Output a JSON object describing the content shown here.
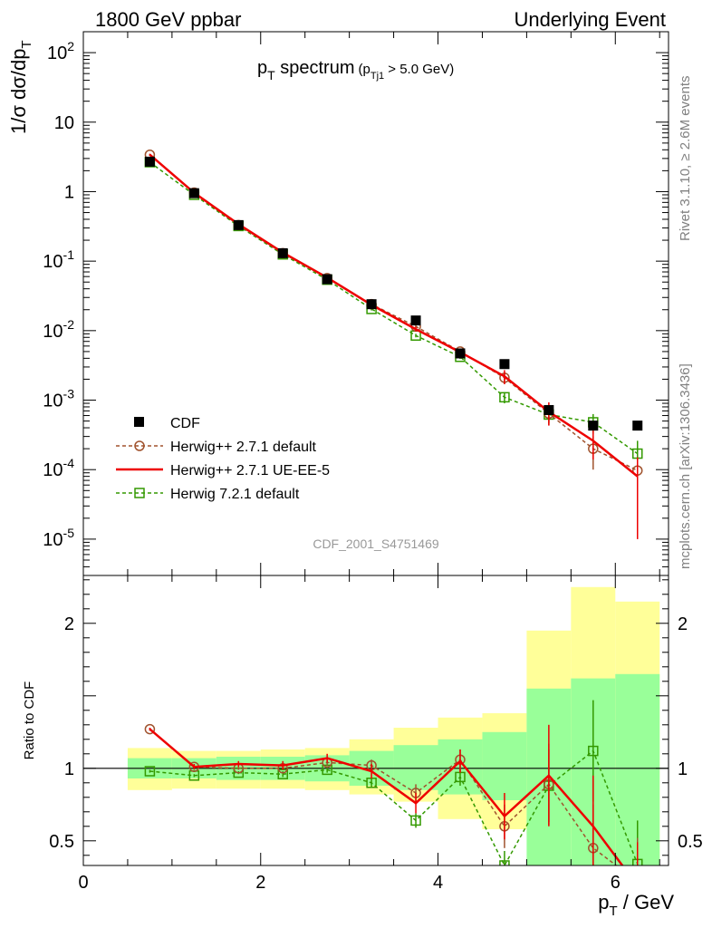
{
  "header": {
    "left": "1800 GeV ppbar",
    "right": "Underlying Event"
  },
  "side": {
    "rivet": "Rivet 3.1.10, ≥ 2.6M events",
    "mcplots": "mcplots.cern.ch [arXiv:1306.3436]"
  },
  "watermark": "CDF_2001_S4751469",
  "plot_title": {
    "main": "p",
    "main_sub": "T",
    "main_rest": " spectrum",
    "cut_open": "(p",
    "cut_sub": "Tj1",
    "cut_rest": " > 5.0 GeV)"
  },
  "axes": {
    "ylabel_main": "1/σ dσ/dp",
    "ylabel_sub": "T",
    "ylabel_ratio": "Ratio to CDF",
    "xlabel_main": "p",
    "xlabel_sub": "T",
    "xlabel_rest": " / GeV"
  },
  "chart_data": [
    {
      "type": "line",
      "panel": "main",
      "xlim": [
        0,
        6.6
      ],
      "ylim": [
        3e-06,
        200
      ],
      "yscale": "log",
      "x_ticks": [
        0,
        2,
        4,
        6
      ],
      "y_ticks": [
        {
          "base": "10",
          "exp": "-5",
          "value": 1e-05
        },
        {
          "base": "10",
          "exp": "-4",
          "value": 0.0001
        },
        {
          "base": "10",
          "exp": "-3",
          "value": 0.001
        },
        {
          "base": "10",
          "exp": "-2",
          "value": 0.01
        },
        {
          "base": "10",
          "exp": "-1",
          "value": 0.1
        },
        {
          "base": "1",
          "exp": "",
          "value": 1
        },
        {
          "base": "10",
          "exp": "",
          "value": 10
        },
        {
          "base": "10",
          "exp": "2",
          "value": 100
        }
      ],
      "legend_position": "lower-left",
      "x": [
        0.75,
        1.25,
        1.75,
        2.25,
        2.75,
        3.25,
        3.75,
        4.25,
        4.75,
        5.25,
        5.75,
        6.25
      ],
      "series": [
        {
          "name": "CDF",
          "color": "#000000",
          "style": "marker-square",
          "values": [
            2.7,
            0.95,
            0.33,
            0.13,
            0.055,
            0.024,
            0.014,
            0.0047,
            0.0033,
            0.00072,
            0.00043,
            0.00043
          ]
        },
        {
          "name": "Herwig++ 2.7.1 default",
          "color": "#a0522d",
          "style": "dashed-circle",
          "values": [
            3.4,
            0.97,
            0.33,
            0.13,
            0.057,
            0.024,
            0.0115,
            0.005,
            0.0021,
            0.00064,
            0.0002,
            9.7e-05
          ],
          "errors": [
            0.1,
            0.03,
            0.01,
            0.005,
            0.002,
            0.001,
            0.0006,
            0.0003,
            0.0004,
            0.0002,
            0.0001,
            4e-05
          ]
        },
        {
          "name": "Herwig++ 2.7.1 UE-EE-5",
          "color": "#ee0000",
          "style": "solid",
          "values": [
            3.4,
            0.96,
            0.34,
            0.133,
            0.058,
            0.0235,
            0.0105,
            0.0049,
            0.0022,
            0.00068,
            0.00026,
            8e-05
          ],
          "errors": [
            0.1,
            0.03,
            0.01,
            0.005,
            0.002,
            0.001,
            0.0008,
            0.0004,
            0.0005,
            0.00025,
            0.00012,
            7e-05
          ]
        },
        {
          "name": "Herwig 7.2.1 default",
          "color": "#339900",
          "style": "dashed-square",
          "values": [
            2.65,
            0.9,
            0.32,
            0.125,
            0.054,
            0.0205,
            0.0085,
            0.0042,
            0.0011,
            0.00062,
            0.00048,
            0.00017
          ],
          "errors": [
            0.08,
            0.03,
            0.01,
            0.004,
            0.002,
            0.001,
            0.0005,
            0.0003,
            0.0002,
            0.00015,
            0.00015,
            9e-05
          ]
        }
      ]
    },
    {
      "type": "line",
      "panel": "ratio",
      "xlim": [
        0,
        6.6
      ],
      "ylim": [
        0.33,
        2.33
      ],
      "yscale": "linear",
      "y_ticks": [
        0.5,
        1,
        1.5,
        2
      ],
      "y_tick_labels": [
        "0.5",
        "1",
        "",
        "2"
      ],
      "x": [
        0.75,
        1.25,
        1.75,
        2.25,
        2.75,
        3.25,
        3.75,
        4.25,
        4.75,
        5.25,
        5.75,
        6.25
      ],
      "bands": {
        "bin_edges": [
          0.5,
          1.0,
          1.5,
          2.0,
          2.5,
          3.0,
          3.5,
          4.0,
          4.5,
          5.0,
          5.5,
          6.0,
          6.5
        ],
        "stat_low": [
          0.93,
          0.93,
          0.92,
          0.92,
          0.91,
          0.88,
          0.85,
          0.82,
          0.78,
          0.33,
          0.33,
          0.33
        ],
        "stat_high": [
          1.07,
          1.07,
          1.08,
          1.08,
          1.09,
          1.12,
          1.16,
          1.2,
          1.25,
          1.55,
          1.62,
          1.65
        ],
        "total_low": [
          0.85,
          0.86,
          0.86,
          0.86,
          0.85,
          0.82,
          0.77,
          0.65,
          0.58,
          0.55,
          0.33,
          0.33
        ],
        "total_high": [
          1.14,
          1.12,
          1.12,
          1.13,
          1.14,
          1.2,
          1.28,
          1.35,
          1.38,
          1.95,
          2.25,
          2.15
        ]
      },
      "series": [
        {
          "name": "Herwig++ 2.7.1 default",
          "values": [
            1.27,
            1.01,
            1.0,
            1.0,
            1.04,
            1.02,
            0.83,
            1.06,
            0.6,
            0.89,
            0.45,
            0.22
          ],
          "errors": [
            0.01,
            0.01,
            0.01,
            0.01,
            0.02,
            0.04,
            0.06,
            0.07,
            0.15,
            0.28,
            0.3,
            0.3
          ]
        },
        {
          "name": "Herwig++ 2.7.1 UE-EE-5",
          "values": [
            1.27,
            1.01,
            1.03,
            1.02,
            1.07,
            0.98,
            0.76,
            1.05,
            0.67,
            0.95,
            0.6,
            0.19
          ],
          "errors": [
            0.01,
            0.02,
            0.02,
            0.03,
            0.03,
            0.05,
            0.07,
            0.08,
            0.16,
            0.35,
            0.35,
            0.3
          ]
        },
        {
          "name": "Herwig 7.2.1 default",
          "values": [
            0.98,
            0.95,
            0.97,
            0.96,
            0.99,
            0.9,
            0.64,
            0.94,
            0.33,
            0.88,
            1.12,
            0.34
          ],
          "errors": [
            0.01,
            0.01,
            0.01,
            0.02,
            0.02,
            0.03,
            0.05,
            0.06,
            0.1,
            0.25,
            0.35,
            0.3
          ]
        }
      ]
    }
  ]
}
